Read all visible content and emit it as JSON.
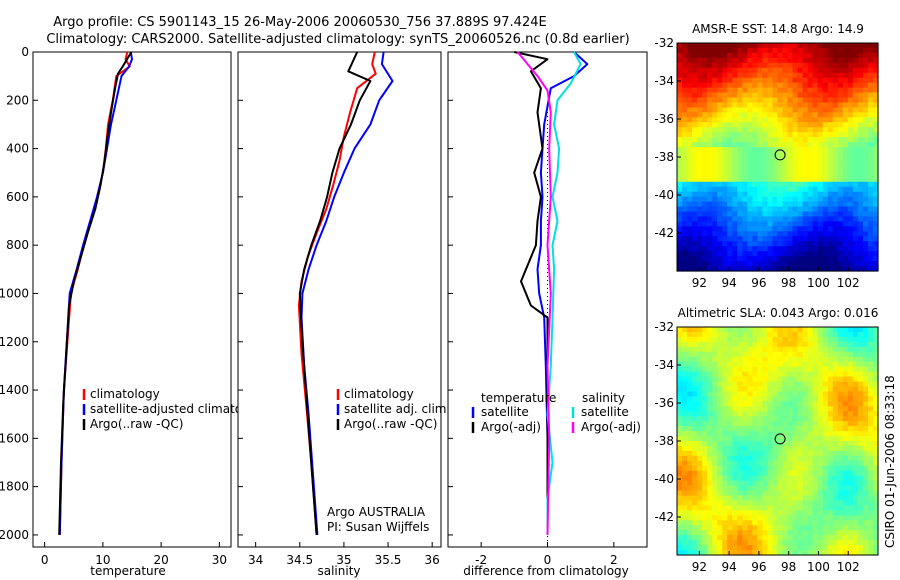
{
  "header": {
    "line1": "Argo profile: CS 5901143_15 26-May-2006 20060530_756 37.889S 97.424E",
    "line2": "Climatology: CARS2000. Satellite-adjusted climatology: synTS_20060526.nc (0.8d earlier)"
  },
  "colors": {
    "red": "#ff0000",
    "blue": "#0000ff",
    "black": "#000000",
    "cyan": "#00e0e0",
    "magenta": "#ff00ff"
  },
  "credit": "CSIRO 01-Jun-2006 08:33:18",
  "chart_data": [
    {
      "id": "temperature",
      "type": "line",
      "xlabel": "temperature",
      "xlim": [
        -2,
        32
      ],
      "ylim": [
        2050,
        0
      ],
      "xticks": [
        0,
        10,
        20,
        30
      ],
      "yticks": [
        0,
        200,
        400,
        600,
        800,
        1000,
        1200,
        1400,
        1600,
        1800,
        2000
      ],
      "legend": [
        "climatology",
        "satellite-adjusted climatology",
        "Argo(..raw -QC)"
      ],
      "series": [
        {
          "name": "climatology",
          "color": "red",
          "x": [
            14.2,
            13.9,
            14.6,
            12.3,
            11.7,
            10.9,
            10.5,
            10.0,
            9.0,
            7.9,
            6.7,
            5.7,
            4.5,
            3.9,
            3.3,
            2.9,
            2.6
          ],
          "y": [
            0,
            30,
            60,
            100,
            200,
            300,
            400,
            500,
            600,
            700,
            800,
            900,
            1000,
            1200,
            1400,
            1700,
            2000
          ]
        },
        {
          "name": "satellite-adjusted climatology",
          "color": "blue",
          "x": [
            14.8,
            15.0,
            14.5,
            13.2,
            12.3,
            11.4,
            10.7,
            10.0,
            9.0,
            7.8,
            6.6,
            5.5,
            4.3,
            3.8,
            3.3,
            2.9,
            2.6
          ],
          "y": [
            0,
            30,
            60,
            100,
            200,
            300,
            400,
            500,
            600,
            700,
            800,
            900,
            1000,
            1200,
            1400,
            1700,
            2000
          ]
        },
        {
          "name": "Argo(..raw -QC)",
          "color": "black",
          "x": [
            14.9,
            13.4,
            12.6,
            12.1,
            11.4,
            10.8,
            10.3,
            9.6,
            8.7,
            7.4,
            6.2,
            5.0,
            4.2,
            3.7,
            3.2,
            2.8,
            2.5
          ],
          "y": [
            0,
            60,
            90,
            150,
            250,
            350,
            450,
            550,
            650,
            750,
            850,
            950,
            1050,
            1250,
            1450,
            1700,
            2000
          ]
        }
      ]
    },
    {
      "id": "salinity",
      "type": "line",
      "xlabel": "salinity",
      "xlim": [
        33.8,
        36.1
      ],
      "ylim": [
        2050,
        0
      ],
      "xticks": [
        34,
        34.5,
        35,
        35.5,
        36
      ],
      "xticklabels": [
        "34",
        "34.5",
        "35",
        "35.5",
        "36"
      ],
      "legend": [
        "climatology",
        "satellite adj. clim.",
        "Argo(..raw -QC)"
      ],
      "annotation": [
        "Argo AUSTRALIA",
        "PI: Susan Wijffels"
      ],
      "series": [
        {
          "name": "climatology",
          "color": "red",
          "x": [
            35.35,
            35.32,
            35.36,
            35.15,
            35.07,
            35.0,
            34.95,
            34.88,
            34.8,
            34.69,
            34.59,
            34.52,
            34.49,
            34.52,
            34.57,
            34.63,
            34.69
          ],
          "y": [
            0,
            50,
            90,
            150,
            250,
            350,
            450,
            550,
            650,
            750,
            850,
            950,
            1050,
            1250,
            1450,
            1700,
            2000
          ]
        },
        {
          "name": "satellite adj. clim.",
          "color": "blue",
          "x": [
            35.45,
            35.43,
            35.55,
            35.4,
            35.3,
            35.12,
            35.0,
            34.89,
            34.8,
            34.69,
            34.6,
            34.53,
            34.52,
            34.55,
            34.6,
            34.65,
            34.7
          ],
          "y": [
            0,
            50,
            120,
            200,
            300,
            400,
            500,
            600,
            700,
            800,
            900,
            1000,
            1100,
            1300,
            1500,
            1750,
            2000
          ]
        },
        {
          "name": "Argo(..raw -QC)",
          "color": "black",
          "x": [
            35.15,
            35.05,
            35.3,
            35.18,
            35.08,
            34.95,
            34.87,
            34.81,
            34.73,
            34.63,
            34.55,
            34.5,
            34.53,
            34.58,
            34.64,
            34.69
          ],
          "y": [
            0,
            80,
            120,
            200,
            300,
            400,
            500,
            600,
            700,
            800,
            900,
            1000,
            1200,
            1450,
            1750,
            2000
          ]
        }
      ]
    },
    {
      "id": "difference",
      "type": "line",
      "xlabel": "difference from climatology",
      "xlim": [
        -3,
        3
      ],
      "ylim": [
        2050,
        0
      ],
      "xticks": [
        -2,
        0,
        2
      ],
      "legend_headers": [
        "temperature",
        "salinity"
      ],
      "legend": [
        "satellite",
        "Argo(-adj)",
        "satellite",
        "Argo(-adj)"
      ],
      "series": [
        {
          "name": "temperature satellite",
          "color": "blue",
          "x": [
            0.8,
            1.2,
            0.8,
            0.1,
            -0.1,
            -0.15,
            -0.2,
            -0.15,
            -0.2,
            -0.2,
            -0.3,
            -0.25,
            -0.1,
            -0.05,
            0.0,
            0.0
          ],
          "y": [
            0,
            50,
            100,
            150,
            300,
            400,
            500,
            600,
            700,
            800,
            900,
            1000,
            1100,
            1300,
            1600,
            2000
          ]
        },
        {
          "name": "temperature Argo(-adj)",
          "color": "black",
          "x": [
            -1.0,
            0.0,
            -0.5,
            -0.2,
            -0.3,
            -0.15,
            -0.4,
            -0.2,
            -0.3,
            -0.35,
            -0.8,
            -0.5,
            0.0,
            0.0,
            0.0
          ],
          "y": [
            0,
            30,
            80,
            150,
            250,
            400,
            500,
            600,
            700,
            800,
            950,
            1050,
            1100,
            1400,
            2000
          ]
        },
        {
          "name": "salinity satellite",
          "color": "cyan",
          "x": [
            0.8,
            1.0,
            0.7,
            0.3,
            0.2,
            0.35,
            0.3,
            0.15,
            0.3,
            0.15,
            0.2,
            0.15,
            0.1,
            0.0,
            0.15,
            0.0,
            0.0
          ],
          "y": [
            0,
            50,
            130,
            200,
            300,
            400,
            500,
            600,
            700,
            800,
            900,
            1100,
            1300,
            1500,
            1700,
            1850,
            2000
          ]
        },
        {
          "name": "salinity Argo(-adj)",
          "color": "magenta",
          "x": [
            -0.9,
            -0.6,
            -0.3,
            0.0,
            0.1,
            0.05,
            0.1,
            0.0,
            0.1,
            0.0,
            0.05,
            0.0
          ],
          "y": [
            0,
            50,
            100,
            160,
            250,
            400,
            600,
            800,
            1000,
            1300,
            1600,
            2000
          ]
        }
      ]
    },
    {
      "id": "amsre_map",
      "type": "heatmap",
      "title": "AMSR-E SST: 14.8 Argo: 14.9",
      "xlim": [
        90.5,
        104
      ],
      "ylim": [
        -44,
        -32
      ],
      "xticks": [
        92,
        94,
        96,
        98,
        100,
        102
      ],
      "yticks": [
        -42,
        -40,
        -38,
        -36,
        -34,
        -32
      ],
      "marker": {
        "lon": 97.424,
        "lat": -37.889
      }
    },
    {
      "id": "sla_map",
      "type": "heatmap",
      "title": "Altimetric SLA: 0.043 Argo: 0.016",
      "xlim": [
        90.5,
        104
      ],
      "ylim": [
        -44,
        -32
      ],
      "xticks": [
        92,
        94,
        96,
        98,
        100,
        102
      ],
      "yticks": [
        -42,
        -40,
        -38,
        -36,
        -34,
        -32
      ],
      "marker": {
        "lon": 97.424,
        "lat": -37.889
      }
    }
  ]
}
